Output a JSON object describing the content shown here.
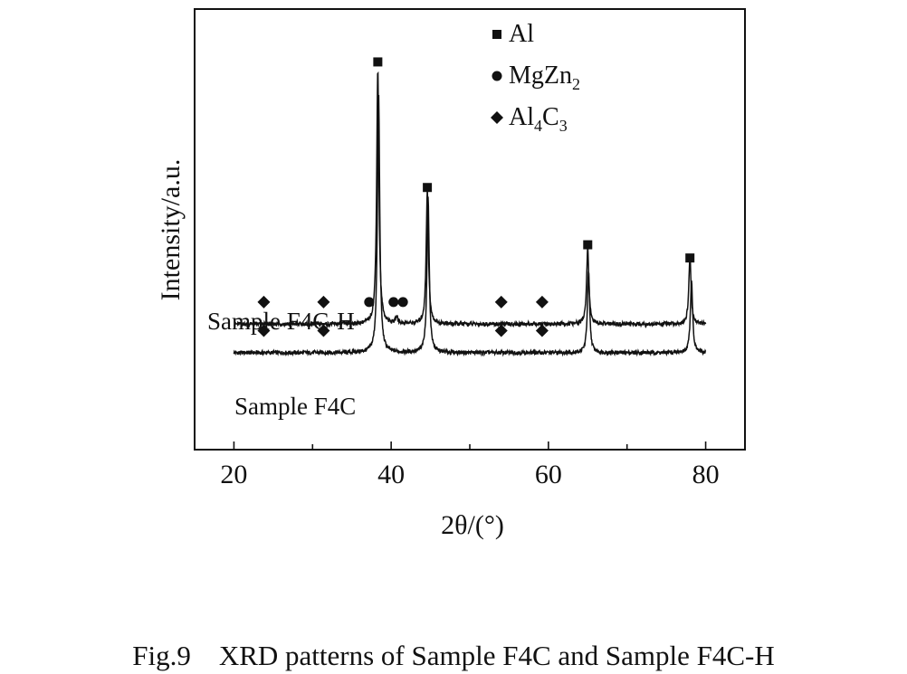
{
  "caption": "Fig.9    XRD patterns of Sample F4C and Sample F4C-H",
  "chart_data": {
    "type": "line",
    "title": "",
    "xlabel": "2θ/(°)",
    "ylabel": "Intensity/a.u.",
    "xlim": [
      15,
      85
    ],
    "xticks": [
      20,
      40,
      60,
      80
    ],
    "xtick_labels": [
      "20",
      "40",
      "60",
      "80"
    ],
    "ylim": [
      0,
      100
    ],
    "yticks_shown": false,
    "grid": false,
    "legend_position": "top-center",
    "legend": [
      {
        "marker": "square",
        "base": "Al",
        "subs": []
      },
      {
        "marker": "circle",
        "base": "MgZn",
        "subs": [
          "2"
        ]
      },
      {
        "marker": "diamond",
        "base": "Al",
        "subs": [
          "4",
          "C",
          "3"
        ]
      }
    ],
    "series": [
      {
        "name": "Sample F4C",
        "baseline": 22,
        "x_range": [
          20,
          80
        ],
        "peaks": [
          {
            "x": 38.4,
            "height": 59
          },
          {
            "x": 44.7,
            "height": 35
          },
          {
            "x": 65.1,
            "height": 18.5
          },
          {
            "x": 78.2,
            "height": 16.5
          }
        ],
        "markers": [
          {
            "x": 23.8,
            "symbol": "diamond"
          },
          {
            "x": 31.4,
            "symbol": "diamond"
          },
          {
            "x": 54.0,
            "symbol": "diamond"
          },
          {
            "x": 59.2,
            "symbol": "diamond"
          }
        ]
      },
      {
        "name": "Sample F4C-H",
        "baseline": 28.5,
        "x_range": [
          20,
          80
        ],
        "peaks": [
          {
            "x": 38.3,
            "height": 58
          },
          {
            "x": 44.6,
            "height": 30.5
          },
          {
            "x": 65.0,
            "height": 17.5
          },
          {
            "x": 78.0,
            "height": 15.5
          },
          {
            "x": 40.7,
            "height": 1.5
          }
        ],
        "markers": [
          {
            "x": 23.8,
            "symbol": "diamond"
          },
          {
            "x": 31.4,
            "symbol": "diamond"
          },
          {
            "x": 37.2,
            "symbol": "circle"
          },
          {
            "x": 40.3,
            "symbol": "circle"
          },
          {
            "x": 41.5,
            "symbol": "circle"
          },
          {
            "x": 54.0,
            "symbol": "diamond"
          },
          {
            "x": 59.2,
            "symbol": "diamond"
          },
          {
            "x": 38.3,
            "symbol": "square",
            "y": 88
          },
          {
            "x": 44.6,
            "symbol": "square",
            "y": 59.5
          },
          {
            "x": 65.0,
            "symbol": "square",
            "y": 46.5
          },
          {
            "x": 78.0,
            "symbol": "square",
            "y": 43.5
          }
        ]
      }
    ]
  }
}
